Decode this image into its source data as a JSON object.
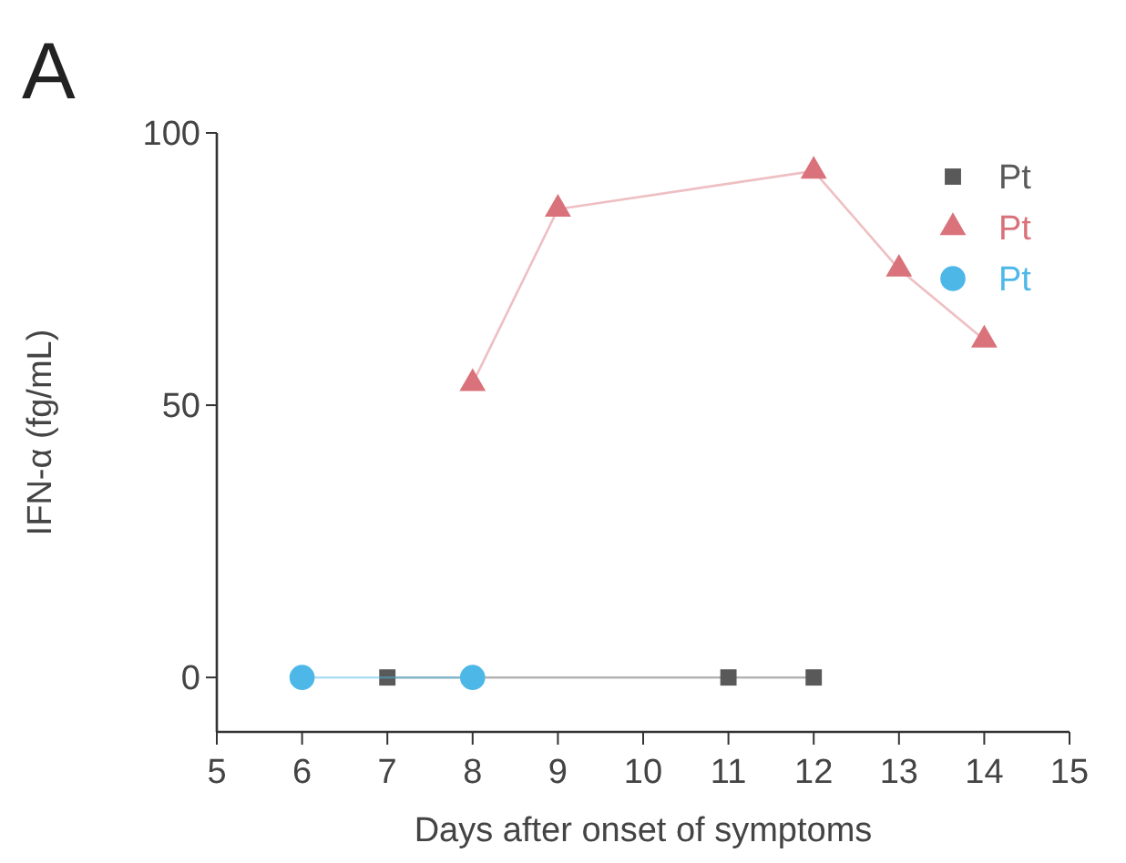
{
  "chart_data": {
    "type": "line",
    "title": "A",
    "xlabel": "Days after onset of symptoms",
    "ylabel": "IFN-α (fg/mL)",
    "xlim": [
      5,
      15
    ],
    "xticks": [
      5,
      6,
      7,
      8,
      9,
      10,
      11,
      12,
      13,
      14,
      15
    ],
    "ylim": [
      -10,
      100
    ],
    "yticks": [
      0,
      50,
      100
    ],
    "legend": "top right",
    "grid": false,
    "series": [
      {
        "name": "Pt",
        "color": "#595959",
        "marker": "square",
        "x": [
          7,
          11,
          12
        ],
        "values": [
          0,
          0,
          0
        ]
      },
      {
        "name": "Pt",
        "color": "#d9727a",
        "marker": "triangle",
        "x": [
          8,
          9,
          12,
          13,
          14
        ],
        "values": [
          54,
          86,
          93,
          75,
          62
        ]
      },
      {
        "name": "Pt",
        "color": "#4db8e8",
        "marker": "circle",
        "x": [
          6,
          8
        ],
        "values": [
          0,
          0
        ]
      }
    ]
  }
}
